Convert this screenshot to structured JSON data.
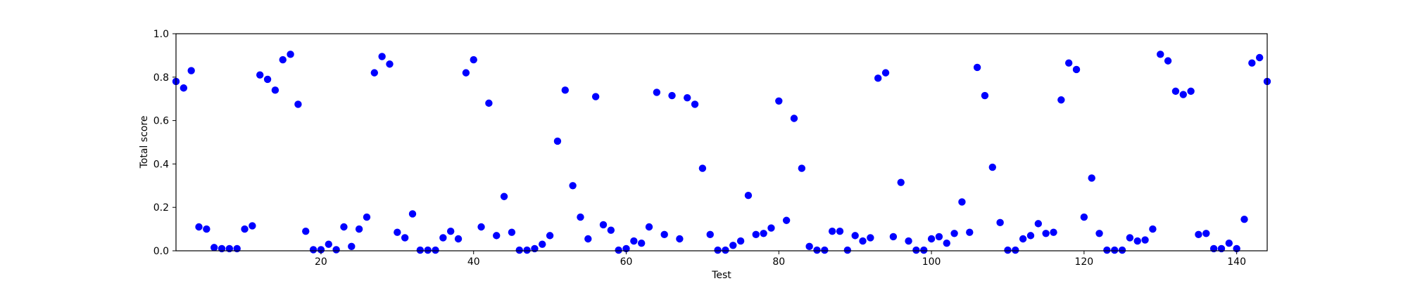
{
  "chart_data": {
    "type": "scatter",
    "title": "",
    "xlabel": "Test",
    "ylabel": "Total score",
    "xlim": [
      1,
      144
    ],
    "ylim": [
      0.0,
      1.0
    ],
    "xticks": [
      20,
      40,
      60,
      80,
      100,
      120,
      140
    ],
    "xtick_labels": [
      "20",
      "40",
      "60",
      "80",
      "100",
      "120",
      "140"
    ],
    "yticks": [
      0.0,
      0.2,
      0.4,
      0.6,
      0.8,
      1.0
    ],
    "ytick_labels": [
      "0.0",
      "0.2",
      "0.4",
      "0.6",
      "0.8",
      "1.0"
    ],
    "grid": false,
    "legend": "none",
    "marker_color": "#0000ff",
    "series": [
      {
        "x": [
          1,
          2,
          3,
          4,
          5,
          6,
          7,
          8,
          9,
          10,
          11,
          12,
          13,
          14,
          15,
          16,
          17,
          18,
          19,
          20,
          21,
          22,
          23,
          24,
          25,
          26,
          27,
          28,
          29,
          30,
          31,
          32,
          33,
          34,
          35,
          36,
          37,
          38,
          39,
          40,
          41,
          42,
          43,
          44,
          45,
          46,
          47,
          48,
          49,
          50,
          51,
          52,
          53,
          54,
          55,
          56,
          57,
          58,
          59,
          60,
          61,
          62,
          63,
          64,
          65,
          66,
          67,
          68,
          69,
          70,
          71,
          72,
          73,
          74,
          75,
          76,
          77,
          78,
          79,
          80,
          81,
          82,
          83,
          84,
          85,
          86,
          87,
          88,
          89,
          90,
          91,
          92,
          93,
          94,
          95,
          96,
          97,
          98,
          99,
          100,
          101,
          102,
          103,
          104,
          105,
          106,
          107,
          108,
          109,
          110,
          111,
          112,
          113,
          114,
          115,
          116,
          117,
          118,
          119,
          120,
          121,
          122,
          123,
          124,
          125,
          126,
          127,
          128,
          129,
          130,
          131,
          132,
          133,
          134,
          135,
          136,
          137,
          138,
          139,
          140,
          141,
          142,
          143,
          144
        ],
        "y": [
          0.78,
          0.75,
          0.83,
          0.11,
          0.1,
          0.015,
          0.01,
          0.01,
          0.01,
          0.1,
          0.115,
          0.81,
          0.79,
          0.74,
          0.88,
          0.905,
          0.675,
          0.09,
          0.005,
          0.005,
          0.03,
          0.005,
          0.11,
          0.02,
          0.1,
          0.155,
          0.82,
          0.895,
          0.86,
          0.085,
          0.06,
          0.17,
          0.003,
          0.003,
          0.003,
          0.06,
          0.09,
          0.055,
          0.82,
          0.88,
          0.11,
          0.68,
          0.07,
          0.25,
          0.085,
          0.003,
          0.003,
          0.01,
          0.03,
          0.07,
          0.505,
          0.74,
          0.3,
          0.155,
          0.055,
          0.71,
          0.12,
          0.095,
          0.003,
          0.01,
          0.045,
          0.035,
          0.11,
          0.73,
          0.075,
          0.715,
          0.055,
          0.705,
          0.675,
          0.38,
          0.075,
          0.003,
          0.003,
          0.025,
          0.045,
          0.255,
          0.075,
          0.08,
          0.105,
          0.69,
          0.14,
          0.61,
          0.38,
          0.02,
          0.003,
          0.003,
          0.09,
          0.09,
          0.003,
          0.07,
          0.045,
          0.06,
          0.795,
          0.82,
          0.065,
          0.315,
          0.045,
          0.003,
          0.003,
          0.055,
          0.065,
          0.035,
          0.08,
          0.225,
          0.085,
          0.845,
          0.715,
          0.385,
          0.13,
          0.003,
          0.003,
          0.055,
          0.07,
          0.125,
          0.08,
          0.085,
          0.695,
          0.865,
          0.835,
          0.155,
          0.335,
          0.08,
          0.003,
          0.003,
          0.003,
          0.06,
          0.045,
          0.05,
          0.1,
          0.905,
          0.875,
          0.735,
          0.72,
          0.735,
          0.075,
          0.08,
          0.01,
          0.01,
          0.035,
          0.01,
          0.145,
          0.865,
          0.89,
          0.78
        ]
      }
    ]
  }
}
